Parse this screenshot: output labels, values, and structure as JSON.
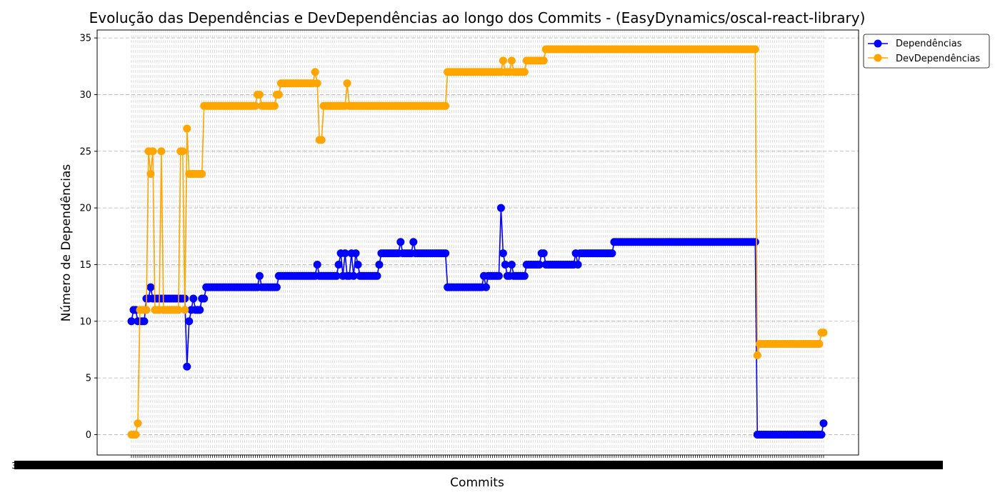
{
  "chart_data": {
    "type": "line",
    "title": "Evolução das Dependências e DevDependências ao longo dos Commits - (EasyDynamics/oscal-react-library)",
    "xlabel": "Commits",
    "ylabel": "Número de Dependências",
    "ylim": [
      -1.8,
      35.7
    ],
    "yticks": [
      0,
      5,
      10,
      15,
      20,
      25,
      30,
      35
    ],
    "grid": true,
    "legend_position": "top-right-outside",
    "x_count": 325,
    "x_first_tick": "3f8",
    "x_last_tick": "b6d8",
    "series": [
      {
        "name": "Dependências",
        "color": "#0000ff",
        "segments": [
          [
            0,
            10
          ],
          [
            1,
            11
          ],
          [
            2,
            11
          ],
          [
            3,
            10
          ],
          [
            4,
            10
          ],
          [
            5,
            10
          ],
          [
            6,
            10
          ],
          [
            7,
            12
          ],
          [
            8,
            12
          ],
          [
            9,
            13
          ],
          [
            10,
            12
          ],
          [
            11,
            12
          ],
          [
            12,
            12
          ],
          [
            13,
            12
          ],
          [
            14,
            12
          ],
          [
            15,
            12
          ],
          [
            16,
            12
          ],
          [
            17,
            12
          ],
          [
            18,
            12
          ],
          [
            19,
            12
          ],
          [
            20,
            12
          ],
          [
            21,
            12
          ],
          [
            22,
            12
          ],
          [
            23,
            12
          ],
          [
            24,
            12
          ],
          [
            25,
            12
          ],
          [
            26,
            6
          ],
          [
            27,
            10
          ],
          [
            28,
            11
          ],
          [
            29,
            12
          ],
          [
            30,
            11
          ],
          [
            31,
            11
          ],
          [
            32,
            11
          ],
          [
            33,
            12
          ],
          [
            34,
            12
          ],
          [
            35,
            13
          ],
          [
            59,
            13
          ],
          [
            60,
            14
          ],
          [
            61,
            13
          ],
          [
            68,
            13
          ],
          [
            69,
            14
          ],
          [
            86,
            14
          ],
          [
            87,
            15
          ],
          [
            88,
            14
          ],
          [
            96,
            14
          ],
          [
            97,
            15
          ],
          [
            98,
            16
          ],
          [
            99,
            14
          ],
          [
            100,
            16
          ],
          [
            101,
            14
          ],
          [
            102,
            14
          ],
          [
            103,
            16
          ],
          [
            104,
            14
          ],
          [
            105,
            16
          ],
          [
            106,
            15
          ],
          [
            107,
            14
          ],
          [
            115,
            14
          ],
          [
            116,
            15
          ],
          [
            117,
            16
          ],
          [
            125,
            16
          ],
          [
            126,
            17
          ],
          [
            127,
            16
          ],
          [
            131,
            16
          ],
          [
            132,
            17
          ],
          [
            133,
            16
          ],
          [
            147,
            16
          ],
          [
            148,
            13
          ],
          [
            164,
            13
          ],
          [
            165,
            14
          ],
          [
            166,
            13
          ],
          [
            167,
            14
          ],
          [
            172,
            14
          ],
          [
            173,
            20
          ],
          [
            174,
            16
          ],
          [
            175,
            15
          ],
          [
            176,
            14
          ],
          [
            177,
            14
          ],
          [
            178,
            15
          ],
          [
            179,
            14
          ],
          [
            184,
            14
          ],
          [
            185,
            15
          ],
          [
            191,
            15
          ],
          [
            192,
            16
          ],
          [
            193,
            16
          ],
          [
            194,
            15
          ],
          [
            207,
            15
          ],
          [
            208,
            16
          ],
          [
            209,
            15
          ],
          [
            210,
            16
          ],
          [
            225,
            16
          ],
          [
            226,
            17
          ],
          [
            292,
            17
          ],
          [
            293,
            0
          ],
          [
            323,
            0
          ],
          [
            324,
            1
          ]
        ]
      },
      {
        "name": "DevDependências",
        "color": "#ffa500",
        "segments": [
          [
            0,
            0
          ],
          [
            1,
            0
          ],
          [
            2,
            0
          ],
          [
            3,
            1
          ],
          [
            4,
            11
          ],
          [
            5,
            11
          ],
          [
            6,
            11
          ],
          [
            7,
            11
          ],
          [
            8,
            25
          ],
          [
            9,
            23
          ],
          [
            10,
            25
          ],
          [
            11,
            11
          ],
          [
            12,
            11
          ],
          [
            13,
            11
          ],
          [
            14,
            25
          ],
          [
            15,
            11
          ],
          [
            16,
            11
          ],
          [
            17,
            11
          ],
          [
            18,
            11
          ],
          [
            19,
            11
          ],
          [
            20,
            11
          ],
          [
            21,
            11
          ],
          [
            22,
            11
          ],
          [
            23,
            25
          ],
          [
            24,
            25
          ],
          [
            25,
            11
          ],
          [
            26,
            27
          ],
          [
            27,
            23
          ],
          [
            28,
            23
          ],
          [
            29,
            23
          ],
          [
            30,
            23
          ],
          [
            31,
            23
          ],
          [
            32,
            23
          ],
          [
            33,
            23
          ],
          [
            34,
            29
          ],
          [
            58,
            29
          ],
          [
            59,
            30
          ],
          [
            60,
            30
          ],
          [
            61,
            29
          ],
          [
            67,
            29
          ],
          [
            68,
            30
          ],
          [
            69,
            30
          ],
          [
            70,
            31
          ],
          [
            85,
            31
          ],
          [
            86,
            32
          ],
          [
            87,
            31
          ],
          [
            88,
            26
          ],
          [
            89,
            26
          ],
          [
            90,
            29
          ],
          [
            100,
            29
          ],
          [
            101,
            31
          ],
          [
            102,
            29
          ],
          [
            147,
            29
          ],
          [
            148,
            32
          ],
          [
            173,
            32
          ],
          [
            174,
            33
          ],
          [
            175,
            32
          ],
          [
            177,
            32
          ],
          [
            178,
            33
          ],
          [
            179,
            32
          ],
          [
            184,
            32
          ],
          [
            185,
            33
          ],
          [
            193,
            33
          ],
          [
            194,
            34
          ],
          [
            292,
            34
          ],
          [
            293,
            7
          ],
          [
            294,
            8
          ],
          [
            322,
            8
          ],
          [
            323,
            9
          ],
          [
            324,
            9
          ]
        ]
      }
    ]
  }
}
